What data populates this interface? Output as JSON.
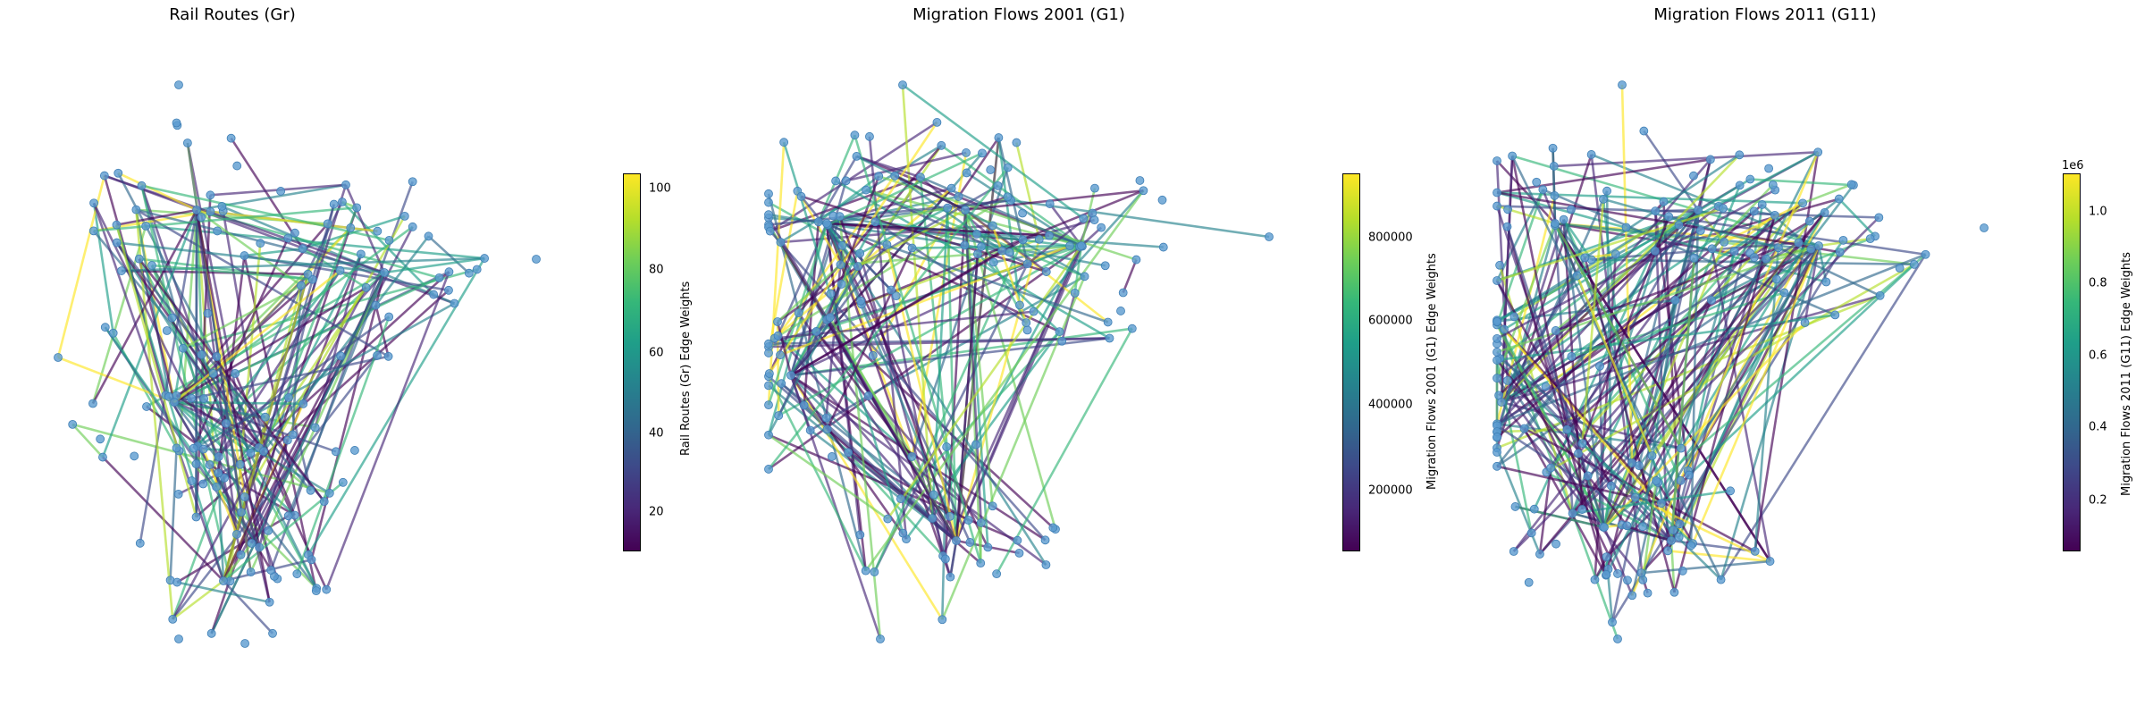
{
  "panels": [
    {
      "title": "Rail Routes (Gr)",
      "colorbar": {
        "label": "Rail Routes (Gr) Edge Weights",
        "ticks": [
          "20",
          "40",
          "60",
          "80",
          "100"
        ],
        "offset": ""
      }
    },
    {
      "title": "Migration Flows 2001 (G1)",
      "colorbar": {
        "label": "Migration Flows 2001 (G1) Edge Weights",
        "ticks": [
          "200000",
          "400000",
          "600000",
          "800000"
        ],
        "offset": ""
      }
    },
    {
      "title": "Migration Flows 2011 (G11)",
      "colorbar": {
        "label": "Migration Flows 2011 (G11) Edge Weights",
        "ticks": [
          "0.2",
          "0.4",
          "0.6",
          "0.8",
          "1.0"
        ],
        "offset": "1e6"
      }
    }
  ],
  "style": {
    "node_color": "#5b9bd0",
    "colormap": "viridis"
  }
}
